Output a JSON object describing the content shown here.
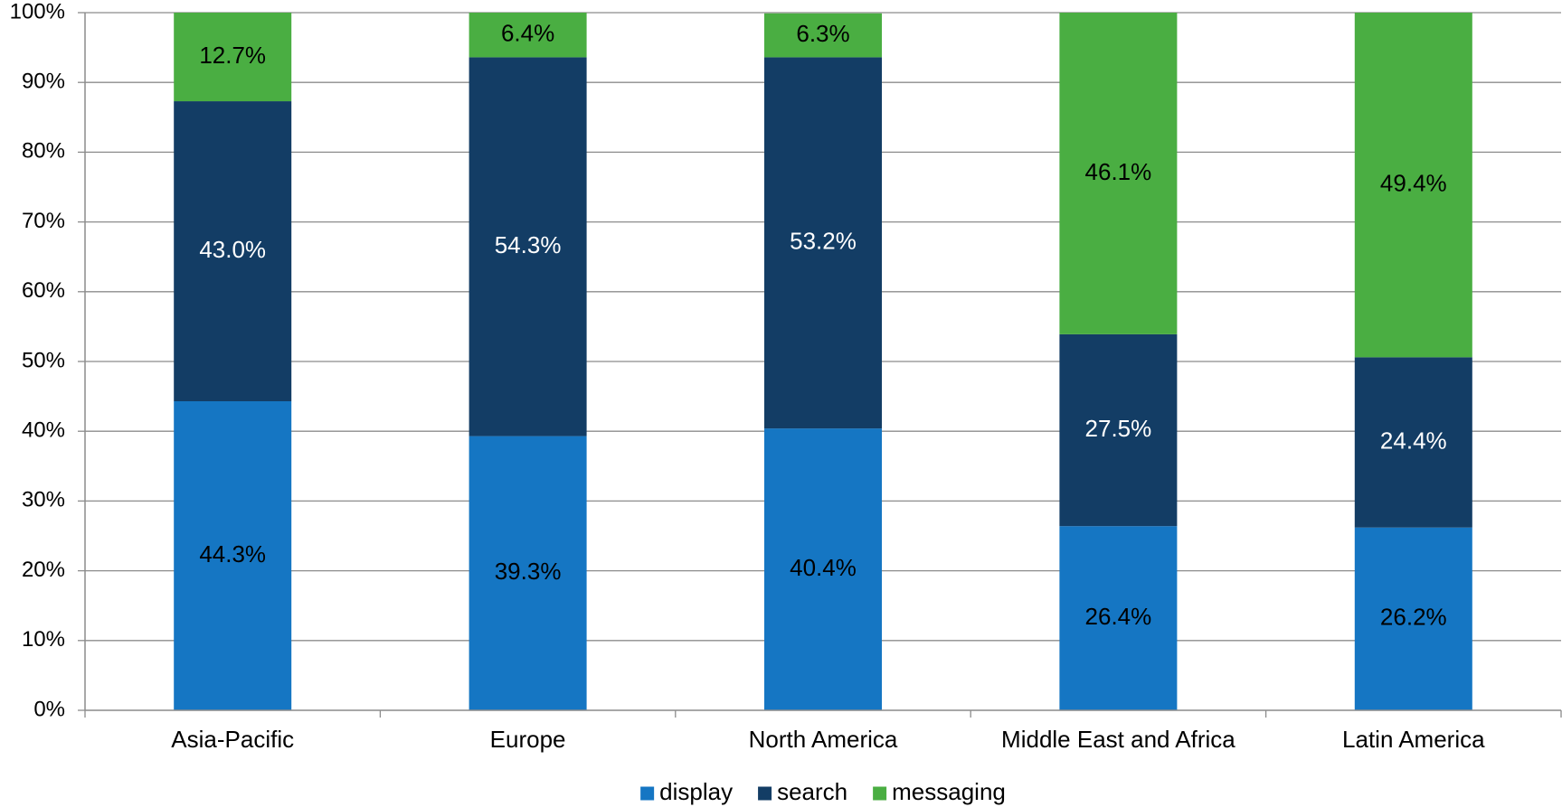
{
  "chart_data": {
    "type": "bar",
    "stacked": true,
    "percent_stacked": true,
    "title": "",
    "xlabel": "",
    "ylabel": "",
    "ylim": [
      0,
      100
    ],
    "y_ticks": [
      "0%",
      "10%",
      "20%",
      "30%",
      "40%",
      "50%",
      "60%",
      "70%",
      "80%",
      "90%",
      "100%"
    ],
    "grid": true,
    "legend_position": "bottom",
    "categories": [
      "Asia-Pacific",
      "Europe",
      "North America",
      "Middle East and Africa",
      "Latin America"
    ],
    "series": [
      {
        "name": "display",
        "color": "#1576c3",
        "label_color": "#000000",
        "values": [
          44.3,
          39.3,
          40.4,
          26.4,
          26.2
        ],
        "labels": [
          "44.3%",
          "39.3%",
          "40.4%",
          "26.4%",
          "26.2%"
        ]
      },
      {
        "name": "search",
        "color": "#133d65",
        "label_color": "#ffffff",
        "values": [
          43.0,
          54.3,
          53.2,
          27.5,
          24.4
        ],
        "labels": [
          "43.0%",
          "54.3%",
          "53.2%",
          "27.5%",
          "24.4%"
        ]
      },
      {
        "name": "messaging",
        "color": "#4aae42",
        "label_color": "#000000",
        "values": [
          12.7,
          6.4,
          6.3,
          46.1,
          49.4
        ],
        "labels": [
          "12.7%",
          "6.4%",
          "6.3%",
          "46.1%",
          "49.4%"
        ]
      }
    ]
  }
}
